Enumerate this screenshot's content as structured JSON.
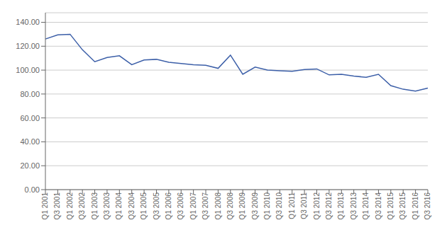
{
  "chart_data": {
    "type": "line",
    "categories": [
      "Q1 2001",
      "Q3 2001",
      "Q1 2002",
      "Q3 2002",
      "Q1 2003",
      "Q3 2003",
      "Q1 2004",
      "Q3 2004",
      "Q1 2005",
      "Q3 2005",
      "Q1 2006",
      "Q3 2006",
      "Q1 2007",
      "Q3 2007",
      "Q1 2008",
      "Q3 2008",
      "Q1 2009",
      "Q3 2009",
      "Q1 2010",
      "Q3 2010",
      "Q1 2011",
      "Q3 2011",
      "Q1 2012",
      "Q3 2012",
      "Q1 2013",
      "Q3 2013",
      "Q1 2014",
      "Q3 2014",
      "Q1 2015",
      "Q3 2015",
      "Q1 2016",
      "Q3 2016"
    ],
    "values": [
      126.0,
      129.5,
      130.0,
      117.0,
      107.0,
      110.5,
      112.0,
      104.5,
      108.5,
      109.0,
      106.5,
      105.5,
      104.5,
      104.0,
      101.5,
      112.5,
      96.5,
      102.5,
      100.0,
      99.5,
      99.0,
      100.5,
      101.0,
      96.0,
      96.5,
      95.0,
      94.0,
      96.5,
      87.0,
      84.0,
      82.5,
      85.0
    ],
    "color": "#3C5FA8",
    "ylim": [
      0,
      148
    ],
    "yticks": [
      {
        "value": 0,
        "label": "0.00"
      },
      {
        "value": 20,
        "label": "20.00"
      },
      {
        "value": 40,
        "label": "40.00"
      },
      {
        "value": 60,
        "label": "60.00"
      },
      {
        "value": 80,
        "label": "80.00"
      },
      {
        "value": 100,
        "label": "100.00"
      },
      {
        "value": 120,
        "label": "120.00"
      },
      {
        "value": 140,
        "label": "140.00"
      }
    ],
    "grid": true
  }
}
